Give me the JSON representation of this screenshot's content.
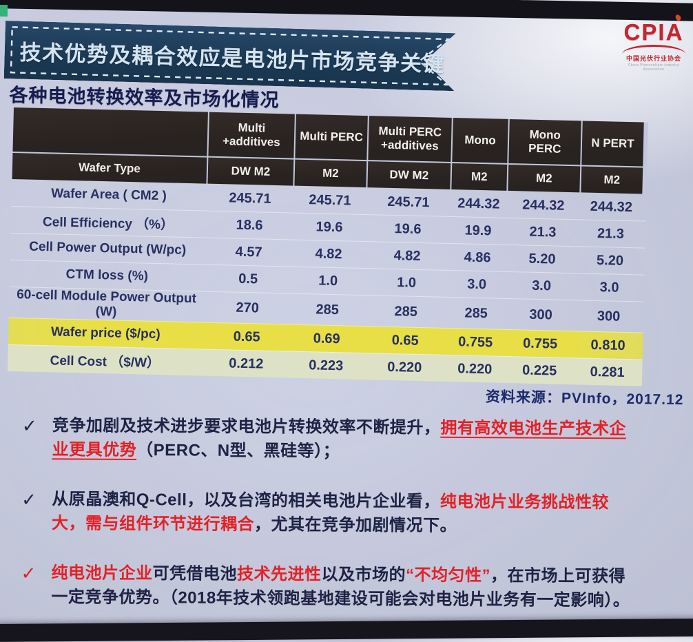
{
  "header": {
    "title": "技术优势及耦合效应是电池片市场竞争关键"
  },
  "logo": {
    "name": "CPIA",
    "caption": "中国光伏行业协会"
  },
  "subtitle": "各种电池转换效率及市场化情况",
  "table": {
    "header_row1": [
      "",
      "Multi +additives",
      "Multi PERC",
      "Multi PERC +additives",
      "Mono",
      "Mono PERC",
      "N PERT"
    ],
    "header_row2": [
      "Wafer Type",
      "DW M2",
      "M2",
      "DW M2",
      "M2",
      "M2",
      "M2"
    ],
    "rows": [
      {
        "label": "Wafer Area ( CM2 )",
        "values": [
          "245.71",
          "245.71",
          "245.71",
          "244.32",
          "244.32",
          "244.32"
        ],
        "highlight": "none"
      },
      {
        "label": "Cell Efficiency （%）",
        "values": [
          "18.6",
          "19.6",
          "19.6",
          "19.9",
          "21.3",
          "21.3"
        ],
        "highlight": "none"
      },
      {
        "label": "Cell Power Output (W/pc)",
        "values": [
          "4.57",
          "4.82",
          "4.82",
          "4.86",
          "5.20",
          "5.20"
        ],
        "highlight": "none"
      },
      {
        "label": "CTM loss (%)",
        "values": [
          "0.5",
          "1.0",
          "1.0",
          "3.0",
          "3.0",
          "3.0"
        ],
        "highlight": "none"
      },
      {
        "label": "60-cell Module Power Output (W)",
        "values": [
          "270",
          "285",
          "285",
          "285",
          "300",
          "300"
        ],
        "highlight": "none"
      },
      {
        "label": "Wafer price  ($/pc)",
        "values": [
          "0.65",
          "0.69",
          "0.65",
          "0.755",
          "0.755",
          "0.810"
        ],
        "highlight": "yellow"
      },
      {
        "label": "Cell Cost （$/W）",
        "values": [
          "0.212",
          "0.223",
          "0.220",
          "0.220",
          "0.225",
          "0.281"
        ],
        "highlight": "pale"
      }
    ]
  },
  "source": "资料来源：PVInfo，2017.12",
  "icons": {
    "check": "✓"
  },
  "bullets": [
    {
      "check": "dark",
      "segments": [
        {
          "t": "竞争加剧及技术进步要求电池片转换效率不断提升，",
          "c": "dark"
        },
        {
          "t": "拥有高效电池生产技术企业更具优势",
          "c": "red",
          "u": true
        },
        {
          "t": "（PERC、N型、黑硅等）；",
          "c": "dark"
        }
      ]
    },
    {
      "check": "dark",
      "segments": [
        {
          "t": "从原晶澳和Q-Cell，以及台湾的相关电池片企业看，",
          "c": "dark"
        },
        {
          "t": "纯电池片业务挑战性较大，需与组件环节进行耦合",
          "c": "red"
        },
        {
          "t": "，尤其在竞争加剧情况下。",
          "c": "dark"
        }
      ]
    },
    {
      "check": "red",
      "segments": [
        {
          "t": "纯电池片企业",
          "c": "red"
        },
        {
          "t": "可凭借电池",
          "c": "dark"
        },
        {
          "t": "技术先进性",
          "c": "red"
        },
        {
          "t": "以及市场的",
          "c": "dark"
        },
        {
          "t": "“不均匀性”",
          "c": "red"
        },
        {
          "t": "，在市场上可获得一定竞争优势。（2018年技术领跑基地建设可能会对电池片业务有一定影响）。",
          "c": "dark"
        }
      ]
    }
  ],
  "colors": {
    "accent_red": "#e32126",
    "banner_navy": "#1c3a55",
    "table_header_dark": "#2a2320",
    "highlight_yellow": "#e7df45",
    "highlight_pale": "#dde2c6",
    "body_text_navy": "#273061"
  }
}
